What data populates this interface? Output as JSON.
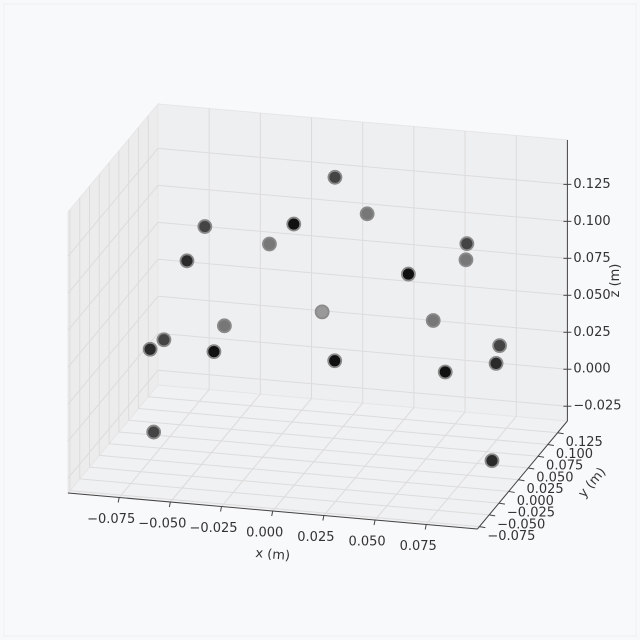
{
  "chart_data": {
    "type": "scatter3d",
    "xlabel": "x (m)",
    "ylabel": "y (m)",
    "zlabel": "z (m)",
    "xlim": [
      -0.1,
      0.1
    ],
    "ylim": [
      -0.08,
      0.15
    ],
    "zlim": [
      -0.035,
      0.155
    ],
    "xticks": [
      {
        "value": -0.075,
        "label": "−0.075"
      },
      {
        "value": -0.05,
        "label": "−0.050"
      },
      {
        "value": -0.025,
        "label": "−0.025"
      },
      {
        "value": 0,
        "label": "0.000"
      },
      {
        "value": 0.025,
        "label": "0.025"
      },
      {
        "value": 0.05,
        "label": "0.050"
      },
      {
        "value": 0.075,
        "label": "0.075"
      }
    ],
    "yticks": [
      {
        "value": -0.075,
        "label": "−0.075"
      },
      {
        "value": -0.05,
        "label": "−0.050"
      },
      {
        "value": -0.025,
        "label": "−0.025"
      },
      {
        "value": 0,
        "label": "0.000"
      },
      {
        "value": 0.025,
        "label": "0.025"
      },
      {
        "value": 0.05,
        "label": "0.050"
      },
      {
        "value": 0.075,
        "label": "0.075"
      },
      {
        "value": 0.1,
        "label": "0.100"
      },
      {
        "value": 0.125,
        "label": "0.125"
      }
    ],
    "zticks": [
      {
        "value": -0.025,
        "label": "−0.025"
      },
      {
        "value": 0,
        "label": "0.000"
      },
      {
        "value": 0.025,
        "label": "0.025"
      },
      {
        "value": 0.05,
        "label": "0.050"
      },
      {
        "value": 0.075,
        "label": "0.075"
      },
      {
        "value": 0.1,
        "label": "0.100"
      },
      {
        "value": 0.125,
        "label": "0.125"
      }
    ],
    "grid": true,
    "x": [
      -0.004,
      0.006,
      -0.058,
      -0.005,
      -0.036,
      0.07,
      0.06,
      -0.061,
      0.051,
      -0.016,
      0.044,
      -0.058,
      -0.078,
      -0.079,
      -0.044,
      0.015,
      0.069,
      0.086,
      0.09,
      -0.083,
      0.088
    ],
    "y": [
      0.1,
      0.13,
      0.05,
      0.0,
      0.1,
      0.05,
      0.1,
      0.02,
      0.0,
      0.13,
      0.1,
      0.1,
      0.05,
      0.02,
      0.0,
      0.0,
      0.0,
      0.05,
      0.02,
      0.05,
      0.02
    ],
    "z": [
      0.133,
      0.1,
      0.109,
      0.133,
      0.084,
      0.113,
      0.085,
      0.095,
      0.106,
      0.031,
      0.042,
      0.026,
      0.03,
      0.033,
      0.042,
      0.043,
      0.042,
      0.046,
      0.044,
      -0.033,
      -0.022
    ],
    "colors": [
      "#444444",
      "#777777",
      "#444444",
      "#111111",
      "#777777",
      "#444444",
      "#777777",
      "#2a2a2a",
      "#111111",
      "#999999",
      "#777777",
      "#777777",
      "#444444",
      "#2a2a2a",
      "#111111",
      "#111111",
      "#111111",
      "#444444",
      "#2a2a2a",
      "#444444",
      "#2a2a2a"
    ]
  }
}
